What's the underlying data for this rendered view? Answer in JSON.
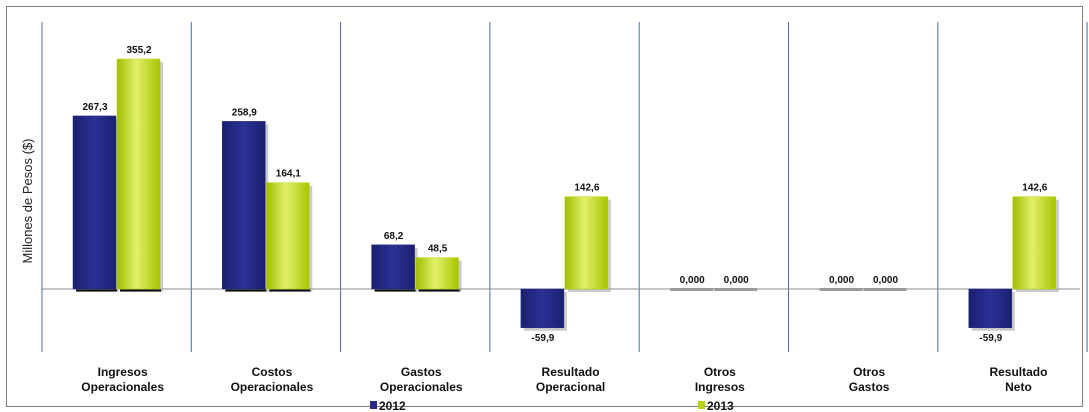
{
  "chart_data": {
    "type": "bar",
    "ylabel": "Millones de Pesos ($)",
    "categories": [
      [
        "Ingresos",
        "Operacionales"
      ],
      [
        "Costos",
        "Operacionales"
      ],
      [
        "Gastos",
        "Operacionales"
      ],
      [
        "Resultado",
        "Operacional"
      ],
      [
        "Otros",
        "Ingresos"
      ],
      [
        "Otros",
        "Gastos"
      ],
      [
        "Resultado",
        "Neto"
      ]
    ],
    "series": [
      {
        "name": "2012",
        "color": "#262a86",
        "values": [
          267.3,
          258.9,
          68.2,
          -59.9,
          0.0,
          0.0,
          -59.9
        ],
        "labels": [
          "267,3",
          "258,9",
          "68,2",
          "-59,9",
          "0,000",
          "0,000",
          "-59,9"
        ]
      },
      {
        "name": "2013",
        "color": "#b9d40f",
        "values": [
          355.2,
          164.1,
          48.5,
          142.6,
          0.0,
          0.0,
          142.6
        ],
        "labels": [
          "355,2",
          "164,1",
          "48,5",
          "142,6",
          "0,000",
          "0,000",
          "142,6"
        ]
      }
    ],
    "ylim": [
      -70,
      380
    ],
    "grid": false,
    "legend": "bottom"
  }
}
